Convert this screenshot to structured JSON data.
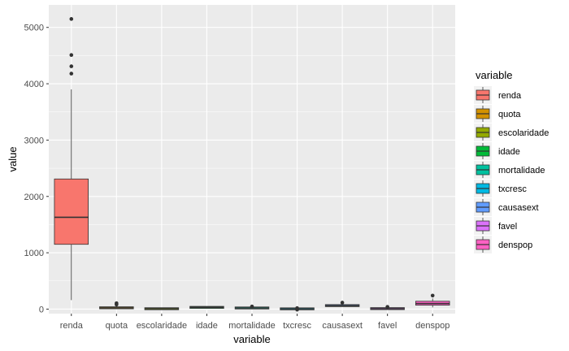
{
  "chart_data": {
    "type": "boxplot",
    "xlabel": "variable",
    "ylabel": "value",
    "ylim": [
      -80,
      5400
    ],
    "y_ticks": [
      0,
      1000,
      2000,
      3000,
      4000,
      5000
    ],
    "grid": true,
    "legend": {
      "title": "variable",
      "position": "right"
    },
    "categories": [
      "renda",
      "quota",
      "escolaridade",
      "idade",
      "mortalidade",
      "txcresc",
      "causasext",
      "favel",
      "denspop"
    ],
    "series": [
      {
        "name": "renda",
        "color": "#F8766D",
        "min": 160,
        "q1": 1150,
        "median": 1630,
        "q3": 2310,
        "max": 3900,
        "outliers": [
          4180,
          4310,
          4510,
          5150
        ]
      },
      {
        "name": "quota",
        "color": "#D39200",
        "min": 5,
        "q1": 15,
        "median": 22,
        "q3": 32,
        "max": 60,
        "outliers": [
          80,
          105
        ]
      },
      {
        "name": "escolaridade",
        "color": "#93AA00",
        "min": 2,
        "q1": 5,
        "median": 7,
        "q3": 9,
        "max": 12,
        "outliers": []
      },
      {
        "name": "idade",
        "color": "#00BA38",
        "min": 20,
        "q1": 27,
        "median": 31,
        "q3": 35,
        "max": 42,
        "outliers": []
      },
      {
        "name": "mortalidade",
        "color": "#00C19F",
        "min": 8,
        "q1": 15,
        "median": 20,
        "q3": 26,
        "max": 40,
        "outliers": [
          48
        ]
      },
      {
        "name": "txcresc",
        "color": "#00B9E3",
        "min": -5,
        "q1": 2,
        "median": 5,
        "q3": 8,
        "max": 15,
        "outliers": [
          -10,
          18
        ]
      },
      {
        "name": "causasext",
        "color": "#619CFF",
        "min": 45,
        "q1": 55,
        "median": 62,
        "q3": 70,
        "max": 85,
        "outliers": [
          115
        ]
      },
      {
        "name": "favel",
        "color": "#DB72FB",
        "min": 0,
        "q1": 3,
        "median": 8,
        "q3": 15,
        "max": 28,
        "outliers": [
          40
        ]
      },
      {
        "name": "denspop",
        "color": "#FF61C3",
        "min": 30,
        "q1": 70,
        "median": 100,
        "q3": 140,
        "max": 190,
        "outliers": [
          240
        ]
      }
    ]
  }
}
